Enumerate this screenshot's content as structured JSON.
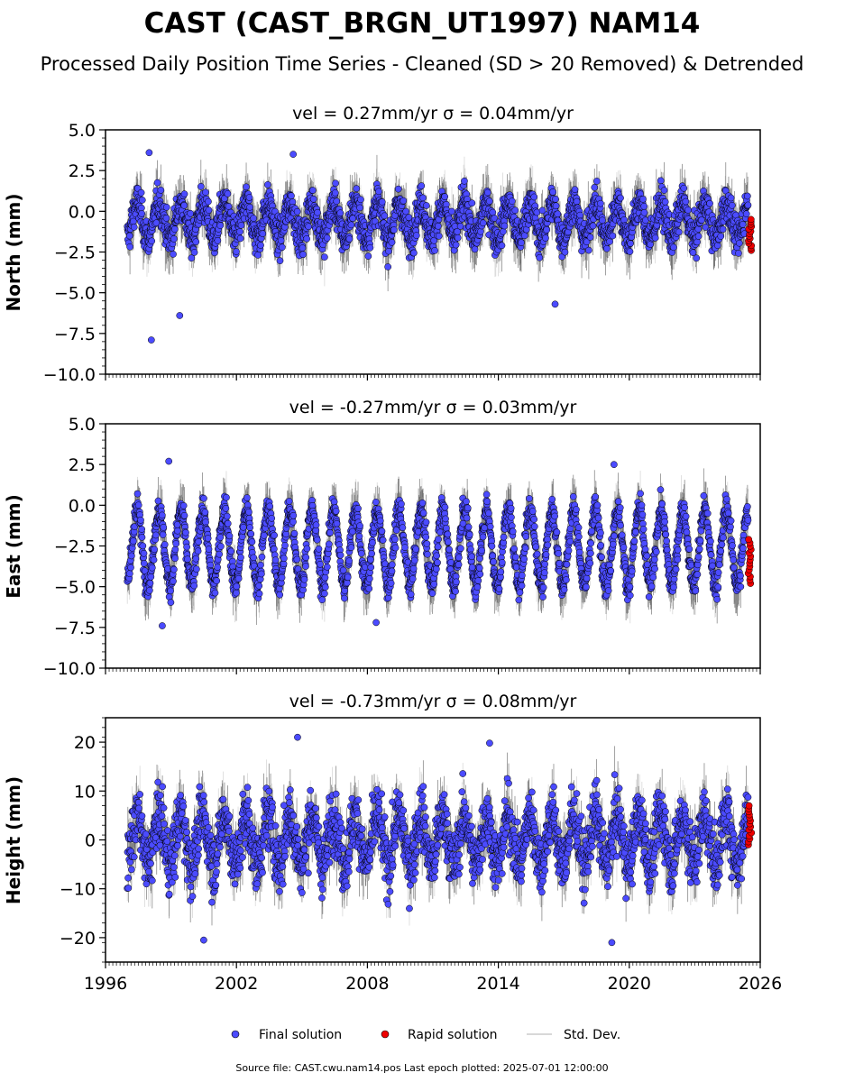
{
  "figure": {
    "title": "CAST (CAST_BRGN_UT1997) NAM14",
    "subtitle": "Processed Daily Position Time Series - Cleaned (SD > 20 Removed) & Detrended",
    "source_note": "Source file: CAST.cwu.nam14.pos  Last epoch plotted: 2025-07-01 12:00:00"
  },
  "legend": {
    "placement": "bottom-center",
    "items": [
      {
        "label": "Final solution",
        "color": "#4b4bff"
      },
      {
        "label": "Rapid solution",
        "color": "#ee0000"
      },
      {
        "label": "Std. Dev.",
        "color": "#cccccc"
      }
    ]
  },
  "colors": {
    "final": "#4b4bff",
    "rapid": "#ee0000",
    "stddev": "#cccccc",
    "marker_edge": "#000000"
  },
  "chart_data": [
    {
      "type": "scatter",
      "component": "north",
      "title": "vel = 0.27mm/yr   σ = 0.04mm/yr",
      "ylabel": "North (mm)",
      "xlim": [
        1996,
        2026
      ],
      "ylim": [
        -10,
        5
      ],
      "x_ticks": [
        "1996",
        "2002",
        "2008",
        "2014",
        "2020",
        "2026"
      ],
      "y_ticks": [
        "5.0",
        "2.5",
        "0.0",
        "−2.5",
        "−5.0",
        "−7.5",
        "−10.0"
      ],
      "x_tick_labels_visible": false,
      "series": [
        {
          "name": "Final solution",
          "kind": "points",
          "x_range": [
            1997.0,
            2025.45
          ],
          "seasonal_amplitude": 1.1,
          "mean": -0.6,
          "noise": 0.9
        },
        {
          "name": "Rapid solution",
          "kind": "points",
          "x_range": [
            2025.45,
            2025.6
          ],
          "values_range": [
            -2.4,
            -0.5
          ]
        }
      ],
      "annotations": [
        {
          "x": 1998.1,
          "y": -7.9
        },
        {
          "x": 1999.4,
          "y": -6.4
        },
        {
          "x": 2016.6,
          "y": -5.7
        },
        {
          "x": 1998.0,
          "y": 3.6
        },
        {
          "x": 2004.6,
          "y": 3.5
        }
      ]
    },
    {
      "type": "scatter",
      "component": "east",
      "title": "vel = -0.27mm/yr   σ = 0.03mm/yr",
      "ylabel": "East (mm)",
      "xlim": [
        1996,
        2026
      ],
      "ylim": [
        -10,
        5
      ],
      "x_ticks": [
        "1996",
        "2002",
        "2008",
        "2014",
        "2020",
        "2026"
      ],
      "y_ticks": [
        "5.0",
        "2.5",
        "0.0",
        "−2.5",
        "−5.0",
        "−7.5",
        "−10.0"
      ],
      "x_tick_labels_visible": false,
      "series": [
        {
          "name": "Final solution",
          "kind": "points",
          "x_range": [
            1997.0,
            2025.45
          ],
          "seasonal_amplitude": 2.3,
          "mean": -2.6,
          "noise": 0.7
        },
        {
          "name": "Rapid solution",
          "kind": "points",
          "x_range": [
            2025.45,
            2025.6
          ],
          "values_range": [
            -4.8,
            -2.1
          ]
        }
      ],
      "annotations": [
        {
          "x": 1998.9,
          "y": 2.7
        },
        {
          "x": 2019.3,
          "y": 2.5
        },
        {
          "x": 2008.4,
          "y": -7.2
        },
        {
          "x": 1998.6,
          "y": -7.4
        }
      ]
    },
    {
      "type": "scatter",
      "component": "height",
      "title": "vel = -0.73mm/yr   σ = 0.08mm/yr",
      "ylabel": "Height (mm)",
      "xlim": [
        1996,
        2026
      ],
      "ylim": [
        -25,
        25
      ],
      "x_ticks": [
        "1996",
        "2002",
        "2008",
        "2014",
        "2020",
        "2026"
      ],
      "y_ticks": [
        "20",
        "10",
        "0",
        "−10",
        "−20"
      ],
      "x_tick_labels_visible": true,
      "series": [
        {
          "name": "Final solution",
          "kind": "points",
          "x_range": [
            1997.0,
            2025.45
          ],
          "seasonal_amplitude": 5.0,
          "mean": 0.0,
          "noise": 5.0
        },
        {
          "name": "Rapid solution",
          "kind": "points",
          "x_range": [
            2025.45,
            2025.6
          ],
          "values_range": [
            -1.0,
            7.0
          ]
        }
      ],
      "annotations": [
        {
          "x": 2004.8,
          "y": 21.0
        },
        {
          "x": 2013.6,
          "y": 19.8
        },
        {
          "x": 2000.5,
          "y": -20.5
        },
        {
          "x": 2019.2,
          "y": -21.0
        }
      ]
    }
  ]
}
